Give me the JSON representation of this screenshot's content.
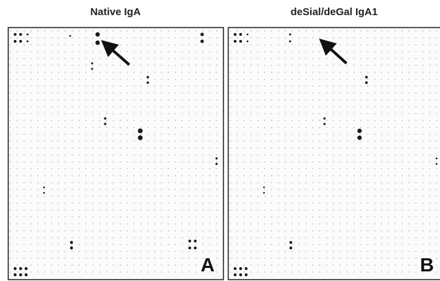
{
  "panels": [
    {
      "title": "Native IgA",
      "label": "A"
    },
    {
      "title": "deSial/deGal IgA1",
      "label": "B"
    }
  ]
}
